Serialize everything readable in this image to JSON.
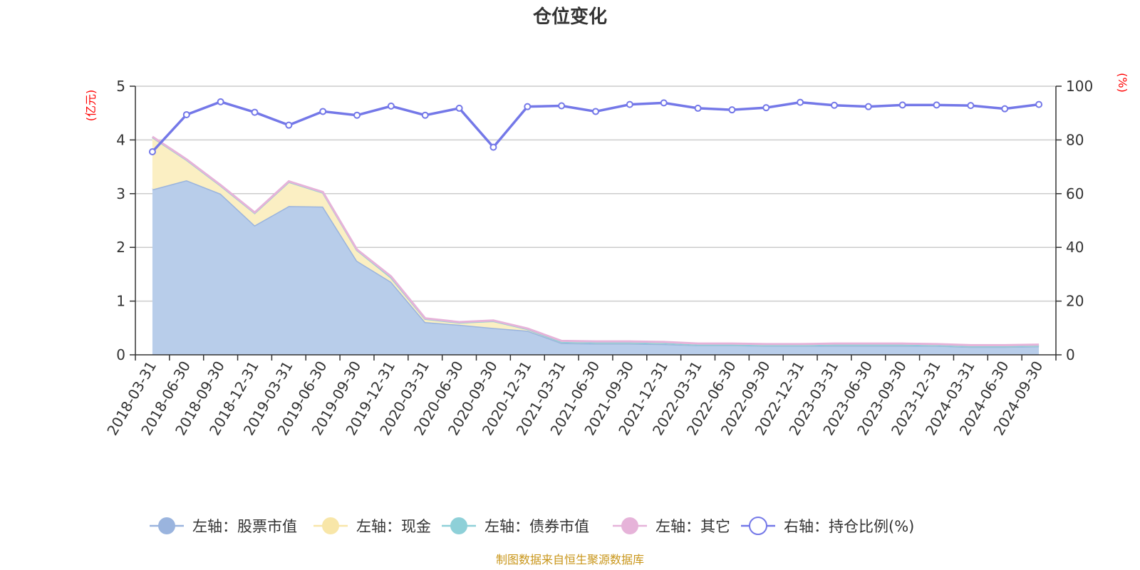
{
  "chart_data": {
    "type": "area+line",
    "title": "仓位变化",
    "left_axis_unit": "(亿元)",
    "right_axis_unit": "(%)",
    "left_ylim": [
      0,
      5
    ],
    "left_ticks": [
      "0",
      "1",
      "2",
      "3",
      "4",
      "5"
    ],
    "right_ylim": [
      0,
      100
    ],
    "right_ticks": [
      "0",
      "20",
      "40",
      "60",
      "80",
      "100"
    ],
    "categories": [
      "2018-03-31",
      "2018-06-30",
      "2018-09-30",
      "2018-12-31",
      "2019-03-31",
      "2019-06-30",
      "2019-09-30",
      "2019-12-31",
      "2020-03-31",
      "2020-06-30",
      "2020-09-30",
      "2020-12-31",
      "2021-03-31",
      "2021-06-30",
      "2021-09-30",
      "2021-12-31",
      "2022-03-31",
      "2022-06-30",
      "2022-09-30",
      "2022-12-31",
      "2023-03-31",
      "2023-06-30",
      "2023-09-30",
      "2023-12-31",
      "2024-03-31",
      "2024-06-30",
      "2024-09-30"
    ],
    "series": [
      {
        "name": "左轴：股票市值",
        "axis": "left",
        "type": "area",
        "color": "#9ab4de",
        "fill": "#b8cdea",
        "values": [
          3.08,
          3.25,
          3.0,
          2.41,
          2.77,
          2.76,
          1.75,
          1.36,
          0.61,
          0.56,
          0.5,
          0.45,
          0.22,
          0.21,
          0.21,
          0.2,
          0.18,
          0.18,
          0.17,
          0.17,
          0.17,
          0.17,
          0.17,
          0.17,
          0.15,
          0.15,
          0.16
        ]
      },
      {
        "name": "左轴：现金",
        "axis": "left",
        "type": "area",
        "color": "#f8e6a8",
        "fill": "#fbefc3",
        "values": [
          0.97,
          0.38,
          0.15,
          0.23,
          0.45,
          0.26,
          0.2,
          0.08,
          0.06,
          0.04,
          0.13,
          0.03,
          0.02,
          0.02,
          0.02,
          0.02,
          0.01,
          0.01,
          0.01,
          0.01,
          0.02,
          0.02,
          0.02,
          0.01,
          0.01,
          0.01,
          0.01
        ]
      },
      {
        "name": "左轴：债券市值",
        "axis": "left",
        "type": "area",
        "color": "#8ed0d8",
        "fill": "#bfe5ea",
        "values": [
          0,
          0,
          0,
          0,
          0,
          0,
          0,
          0,
          0,
          0,
          0,
          0,
          0,
          0,
          0,
          0,
          0,
          0,
          0,
          0,
          0,
          0,
          0,
          0,
          0,
          0,
          0
        ]
      },
      {
        "name": "左轴：其它",
        "axis": "left",
        "type": "area",
        "color": "#e6b3d9",
        "fill": "#efd0e7",
        "values": [
          0.01,
          0.01,
          0.01,
          0.01,
          0.01,
          0.01,
          0.01,
          0.02,
          0.01,
          0.01,
          0.01,
          0.01,
          0.02,
          0.02,
          0.02,
          0.02,
          0.02,
          0.02,
          0.02,
          0.02,
          0.02,
          0.02,
          0.02,
          0.02,
          0.02,
          0.02,
          0.02
        ]
      },
      {
        "name": "右轴：持仓比例(%)",
        "axis": "right",
        "type": "line",
        "color": "#7478e8",
        "values": [
          75.6,
          89.4,
          94.2,
          90.3,
          85.5,
          90.6,
          89.2,
          92.6,
          89.2,
          91.8,
          77.3,
          92.4,
          92.7,
          90.6,
          93.2,
          93.8,
          91.8,
          91.2,
          92.0,
          94.0,
          92.9,
          92.4,
          93.0,
          93.0,
          92.8,
          91.6,
          93.2
        ]
      }
    ],
    "source_text": "制图数据来自恒生聚源数据库"
  }
}
